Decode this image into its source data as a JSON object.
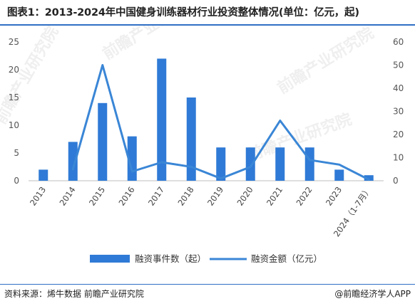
{
  "title": "图表1：2013-2024年中国健身训练器材行业投资整体情况(单位：亿元，起)",
  "source": "资料来源：烯牛数据 前瞻产业研究院",
  "credit": "@前瞻经济学人APP",
  "watermark": "前瞻产业研究院",
  "colors": {
    "bar": "#2f7ad6",
    "line": "#3a86d6",
    "rule": "#2f6fc4",
    "axis": "#bfbfbf"
  },
  "chart_data": {
    "type": "bar",
    "categories": [
      "2013",
      "2014",
      "2015",
      "2016",
      "2017",
      "2018",
      "2019",
      "2020",
      "2021",
      "2022",
      "2023",
      "2024（1-7月）"
    ],
    "series": [
      {
        "name": "融资事件数（起）",
        "type": "bar",
        "axis": "left",
        "values": [
          2,
          7,
          14,
          8,
          22,
          15,
          6,
          6,
          6,
          6,
          2,
          1
        ]
      },
      {
        "name": "融资金额（亿元）",
        "type": "line",
        "axis": "right",
        "values": [
          null,
          5,
          50,
          4,
          8,
          6,
          1,
          6,
          26,
          9,
          7,
          0.5
        ]
      }
    ],
    "y_left": {
      "ylim": [
        0,
        25
      ],
      "ticks": [
        "0",
        "5",
        "10",
        "15",
        "20",
        "25"
      ]
    },
    "y_right": {
      "ylim": [
        0,
        60
      ],
      "ticks": [
        "0",
        "10",
        "20",
        "30",
        "40",
        "50",
        "60"
      ]
    },
    "grid": false,
    "legend": "bottom"
  }
}
